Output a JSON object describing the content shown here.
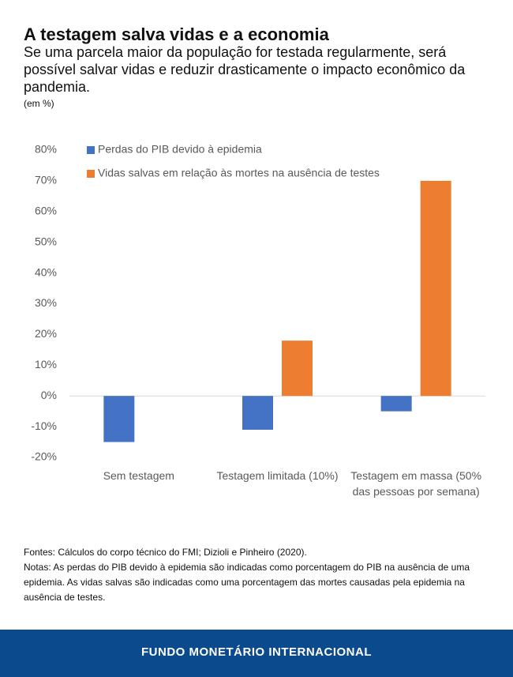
{
  "chart_data": {
    "type": "bar",
    "title": "A testagem salva vidas e a economia",
    "subtitle": "Se uma parcela maior da população for testada regularmente, será possível salvar vidas e reduzir drasticamente o impacto econômico da pandemia.",
    "unit_label": "(em %)",
    "categories": [
      "Sem testagem",
      "Testagem limitada (10%)",
      "Testagem em massa (50% das pessoas por semana)"
    ],
    "series": [
      {
        "name": "Perdas do PIB devido à epidemia",
        "color": "#4472c4",
        "values": [
          -15,
          -11,
          -5
        ]
      },
      {
        "name": "Vidas salvas em relação às mortes na ausência de testes",
        "color": "#ed7d31",
        "values": [
          null,
          18,
          70
        ]
      }
    ],
    "ylim": [
      -20,
      80
    ],
    "yticks": [
      {
        "value": -20,
        "label": "-20%"
      },
      {
        "value": -10,
        "label": "-10%"
      },
      {
        "value": 0,
        "label": "0%"
      },
      {
        "value": 10,
        "label": "10%"
      },
      {
        "value": 20,
        "label": "20%"
      },
      {
        "value": 30,
        "label": "30%"
      },
      {
        "value": 40,
        "label": "40%"
      },
      {
        "value": 50,
        "label": "50%"
      },
      {
        "value": 60,
        "label": "60%"
      },
      {
        "value": 70,
        "label": "70%"
      },
      {
        "value": 80,
        "label": "80%"
      }
    ],
    "grid": false,
    "legend": "top-left"
  },
  "sources": "Fontes: Cálculos do corpo técnico do FMI; Dizioli e Pinheiro (2020).",
  "notes": "Notas: As perdas do PIB devido à epidemia são indicadas como porcentagem do PIB na ausência de uma epidemia. As vidas salvas são indicadas como uma porcentagem das mortes causadas pela epidemia na ausência de testes.",
  "footer": "FUNDO MONETÁRIO INTERNACIONAL"
}
